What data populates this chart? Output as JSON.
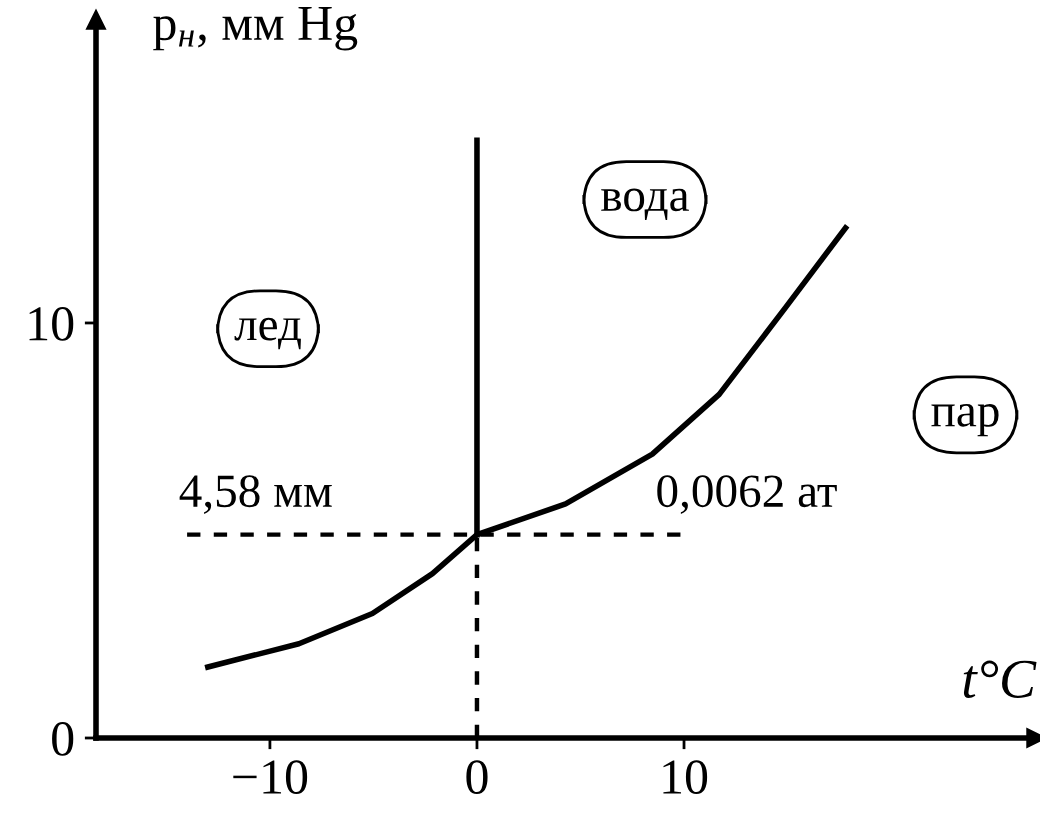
{
  "chart_data": {
    "type": "line",
    "xlabel": "t°C",
    "ylabel": "p$_{н}$, мм Hg",
    "xlim": [
      -18.4,
      27
    ],
    "ylim": [
      0,
      17.3
    ],
    "xticks": [
      -10,
      0,
      10
    ],
    "yticks": [
      0,
      10
    ],
    "grid": false,
    "legend": false,
    "marker": "none",
    "series": [
      {
        "color": "#000000",
        "line_style": "solid",
        "x": [
          -13.0,
          -8.6,
          -5.05,
          -2.15,
          0,
          4.28,
          8.47,
          11.7,
          14.9,
          17.8
        ],
        "values": [
          1.71,
          2.27,
          3.0,
          3.96,
          4.9,
          5.64,
          6.84,
          8.28,
          10.37,
          12.29
        ]
      },
      {
        "color": "#000000",
        "line_style": "solid",
        "x": [
          0,
          0
        ],
        "values": [
          4.9,
          14.4
        ]
      },
      {
        "color": "#000000",
        "line_style": "dashed",
        "x": [
          0,
          0
        ],
        "values": [
          0,
          4.9
        ]
      },
      {
        "color": "#000000",
        "line_style": "dashed",
        "x": [
          -14.0,
          10.05
        ],
        "values": [
          4.9,
          4.9
        ]
      }
    ],
    "annotations": [
      "лед",
      "вода",
      "пар",
      "4,58 мм",
      "0,0062 ат"
    ]
  }
}
